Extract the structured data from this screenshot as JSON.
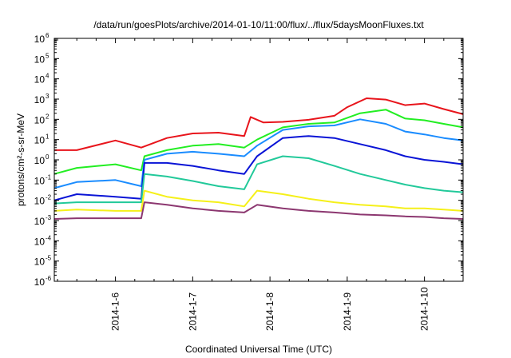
{
  "chart_data": {
    "type": "line",
    "title": "/data/run/goesPlots/archive/2014-01-10/11:00/flux/../flux/5daysMoonFluxes.txt",
    "xlabel": "Coordinated Universal Time (UTC)",
    "ylabel": "protons/cm²-s-sr-MeV",
    "y_scale": "log",
    "ylim": [
      1e-06,
      1000000.0
    ],
    "y_ticks": [
      {
        "base": "10",
        "exp": "-6"
      },
      {
        "base": "10",
        "exp": "-5"
      },
      {
        "base": "10",
        "exp": "-4"
      },
      {
        "base": "10",
        "exp": "-3"
      },
      {
        "base": "10",
        "exp": "-2"
      },
      {
        "base": "10",
        "exp": "-1"
      },
      {
        "base": "10",
        "exp": "0"
      },
      {
        "base": "10",
        "exp": "1"
      },
      {
        "base": "10",
        "exp": "2"
      },
      {
        "base": "10",
        "exp": "3"
      },
      {
        "base": "10",
        "exp": "4"
      },
      {
        "base": "10",
        "exp": "5"
      },
      {
        "base": "10",
        "exp": "6"
      }
    ],
    "xlim": [
      "2014-01-05 05:00",
      "2014-01-10 12:00"
    ],
    "x_tick_labels": [
      "2014-1-6",
      "2014-1-7",
      "2014-1-8",
      "2014-1-9",
      "2014-1-10"
    ],
    "grid": false,
    "legend": "none",
    "series": [
      {
        "color": "#e8141b",
        "x": [
          "2014-01-05 05:00",
          "2014-01-05 12:00",
          "2014-01-06 00:00",
          "2014-01-06 08:00",
          "2014-01-06 16:00",
          "2014-01-07 00:00",
          "2014-01-07 08:00",
          "2014-01-07 16:00",
          "2014-01-07 18:00",
          "2014-01-07 22:00",
          "2014-01-08 04:00",
          "2014-01-08 12:00",
          "2014-01-08 20:00",
          "2014-01-09 00:00",
          "2014-01-09 06:00",
          "2014-01-09 12:00",
          "2014-01-09 18:00",
          "2014-01-10 00:00",
          "2014-01-10 06:00",
          "2014-01-10 12:00"
        ],
        "y": [
          3,
          3,
          9,
          4,
          12,
          20,
          22,
          15,
          130,
          70,
          75,
          95,
          150,
          400,
          1100,
          950,
          500,
          600,
          320,
          180
        ]
      },
      {
        "color": "#22ee22",
        "x": [
          "2014-01-05 05:00",
          "2014-01-05 12:00",
          "2014-01-06 00:00",
          "2014-01-06 08:00",
          "2014-01-06 09:00",
          "2014-01-06 16:00",
          "2014-01-07 00:00",
          "2014-01-07 08:00",
          "2014-01-07 16:00",
          "2014-01-07 20:00",
          "2014-01-08 04:00",
          "2014-01-08 12:00",
          "2014-01-08 20:00",
          "2014-01-09 04:00",
          "2014-01-09 12:00",
          "2014-01-09 18:00",
          "2014-01-10 00:00",
          "2014-01-10 06:00",
          "2014-01-10 12:00"
        ],
        "y": [
          0.2,
          0.4,
          0.6,
          0.3,
          1.5,
          3,
          5,
          6,
          4,
          10,
          40,
          60,
          70,
          200,
          300,
          110,
          90,
          60,
          40
        ]
      },
      {
        "color": "#1a8cff",
        "x": [
          "2014-01-05 05:00",
          "2014-01-05 12:00",
          "2014-01-06 00:00",
          "2014-01-06 08:00",
          "2014-01-06 09:00",
          "2014-01-06 16:00",
          "2014-01-07 00:00",
          "2014-01-07 08:00",
          "2014-01-07 16:00",
          "2014-01-07 20:00",
          "2014-01-08 04:00",
          "2014-01-08 12:00",
          "2014-01-08 20:00",
          "2014-01-09 04:00",
          "2014-01-09 12:00",
          "2014-01-09 18:00",
          "2014-01-10 00:00",
          "2014-01-10 06:00",
          "2014-01-10 12:00"
        ],
        "y": [
          0.04,
          0.08,
          0.1,
          0.05,
          1,
          2,
          2.5,
          2,
          1.5,
          5,
          30,
          45,
          50,
          100,
          60,
          25,
          18,
          12,
          9
        ]
      },
      {
        "color": "#0a14d6",
        "x": [
          "2014-01-05 05:00",
          "2014-01-05 12:00",
          "2014-01-06 00:00",
          "2014-01-06 08:00",
          "2014-01-06 09:00",
          "2014-01-06 16:00",
          "2014-01-07 00:00",
          "2014-01-07 08:00",
          "2014-01-07 16:00",
          "2014-01-07 20:00",
          "2014-01-08 04:00",
          "2014-01-08 12:00",
          "2014-01-08 20:00",
          "2014-01-09 04:00",
          "2014-01-09 12:00",
          "2014-01-09 18:00",
          "2014-01-10 00:00",
          "2014-01-10 06:00",
          "2014-01-10 12:00"
        ],
        "y": [
          0.01,
          0.02,
          0.015,
          0.012,
          0.7,
          0.7,
          0.5,
          0.3,
          0.2,
          1.5,
          12,
          15,
          12,
          6,
          3,
          1.5,
          1,
          0.8,
          0.6
        ]
      },
      {
        "color": "#22c99a",
        "x": [
          "2014-01-05 05:00",
          "2014-01-05 12:00",
          "2014-01-06 00:00",
          "2014-01-06 08:00",
          "2014-01-06 09:00",
          "2014-01-06 16:00",
          "2014-01-07 00:00",
          "2014-01-07 08:00",
          "2014-01-07 16:00",
          "2014-01-07 20:00",
          "2014-01-08 04:00",
          "2014-01-08 12:00",
          "2014-01-08 20:00",
          "2014-01-09 04:00",
          "2014-01-09 12:00",
          "2014-01-09 18:00",
          "2014-01-10 00:00",
          "2014-01-10 06:00",
          "2014-01-10 12:00"
        ],
        "y": [
          0.007,
          0.008,
          0.008,
          0.008,
          0.2,
          0.15,
          0.09,
          0.05,
          0.035,
          0.6,
          1.5,
          1.2,
          0.5,
          0.2,
          0.1,
          0.06,
          0.04,
          0.03,
          0.025
        ]
      },
      {
        "color": "#f5f019",
        "x": [
          "2014-01-05 05:00",
          "2014-01-05 12:00",
          "2014-01-06 00:00",
          "2014-01-06 08:00",
          "2014-01-06 09:00",
          "2014-01-06 16:00",
          "2014-01-07 00:00",
          "2014-01-07 08:00",
          "2014-01-07 16:00",
          "2014-01-07 20:00",
          "2014-01-08 04:00",
          "2014-01-08 12:00",
          "2014-01-08 20:00",
          "2014-01-09 04:00",
          "2014-01-09 12:00",
          "2014-01-09 18:00",
          "2014-01-10 00:00",
          "2014-01-10 06:00",
          "2014-01-10 12:00"
        ],
        "y": [
          0.003,
          0.0035,
          0.003,
          0.003,
          0.03,
          0.015,
          0.01,
          0.008,
          0.005,
          0.03,
          0.02,
          0.012,
          0.008,
          0.006,
          0.005,
          0.004,
          0.004,
          0.0035,
          0.003
        ]
      },
      {
        "color": "#8c3770",
        "x": [
          "2014-01-05 05:00",
          "2014-01-05 12:00",
          "2014-01-06 00:00",
          "2014-01-06 08:00",
          "2014-01-06 09:00",
          "2014-01-06 16:00",
          "2014-01-07 00:00",
          "2014-01-07 08:00",
          "2014-01-07 16:00",
          "2014-01-07 20:00",
          "2014-01-08 04:00",
          "2014-01-08 12:00",
          "2014-01-08 20:00",
          "2014-01-09 04:00",
          "2014-01-09 12:00",
          "2014-01-09 18:00",
          "2014-01-10 00:00",
          "2014-01-10 06:00",
          "2014-01-10 12:00"
        ],
        "y": [
          0.0012,
          0.0013,
          0.0013,
          0.0013,
          0.008,
          0.006,
          0.004,
          0.003,
          0.0025,
          0.006,
          0.004,
          0.003,
          0.0025,
          0.002,
          0.0018,
          0.0016,
          0.0015,
          0.0013,
          0.0012
        ]
      }
    ]
  }
}
